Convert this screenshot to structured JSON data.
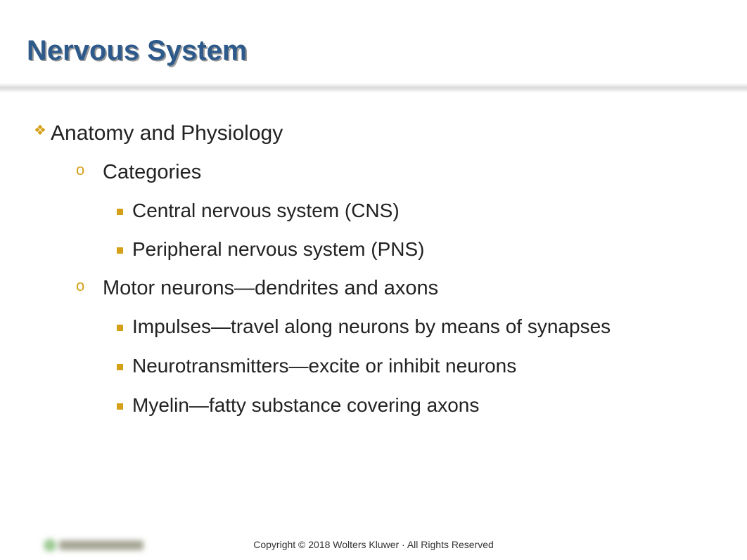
{
  "title": "Nervous System",
  "colors": {
    "title_color": "#2d5a8a",
    "title_shadow": "#999999",
    "bullet_color": "#d4a017",
    "text_color": "#222222",
    "background": "#ffffff",
    "footer_text": "#333333"
  },
  "typography": {
    "title_fontsize": 40,
    "l1_fontsize": 30,
    "l2_fontsize": 29,
    "l3_fontsize": 28,
    "footer_fontsize": 14,
    "font_family": "Verdana"
  },
  "content": {
    "l1_1": "Anatomy and Physiology",
    "l2_1": "Categories",
    "l3_1": "Central nervous system (CNS)",
    "l3_2": "Peripheral nervous system (PNS)",
    "l2_2": "Motor neurons—dendrites and axons",
    "l3_3": "Impulses—travel along neurons by means of synapses",
    "l3_4": "Neurotransmitters—excite or inhibit neurons",
    "l3_5": "Myelin—fatty substance covering axons"
  },
  "bullets": {
    "l1_glyph": "❖",
    "l2_glyph": "o",
    "l3_shape": "square"
  },
  "footer": "Copyright © 2018 Wolters Kluwer · All Rights Reserved"
}
